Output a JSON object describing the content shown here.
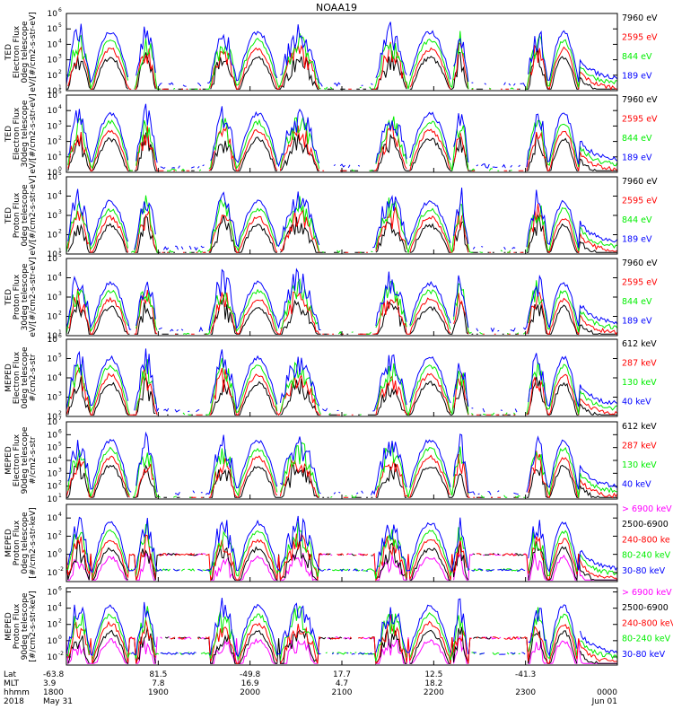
{
  "chart_data": {
    "type": "line",
    "title": "NOAA19",
    "colors": {
      "blue": "#0000ff",
      "green": "#00ee00",
      "red": "#ff0000",
      "black": "#000000",
      "magenta": "#ff00ff"
    },
    "x_ticks": [
      {
        "lat": "-63.8",
        "mlt": "3.9",
        "hhmm": "1800",
        "date": "May 31",
        "frac": 0.0
      },
      {
        "lat": "81.5",
        "mlt": "7.8",
        "hhmm": "1900",
        "date": "",
        "frac": 0.1667
      },
      {
        "lat": "-49.8",
        "mlt": "16.9",
        "hhmm": "2000",
        "date": "",
        "frac": 0.3333
      },
      {
        "lat": "17.7",
        "mlt": "4.7",
        "hhmm": "2100",
        "date": "",
        "frac": 0.5
      },
      {
        "lat": "12.5",
        "mlt": "18.2",
        "hhmm": "2200",
        "date": "",
        "frac": 0.6667
      },
      {
        "lat": "-41.3",
        "mlt": "",
        "hhmm": "2300",
        "date": "",
        "frac": 0.8333
      },
      {
        "lat": "",
        "mlt": "",
        "hhmm": "0000",
        "date": "Jun 01",
        "frac": 1.0
      }
    ],
    "row_labels": {
      "lat": "Lat",
      "mlt": "MLT",
      "hhmm": "hhmm",
      "year": "2018"
    },
    "panels": [
      {
        "ylabel": [
          "TED",
          "Electron Flux",
          "0deg telescope",
          "eV/[#/cm2-s-str-eV]"
        ],
        "yticks": [
          {
            "e": 1,
            "t": "10"
          },
          {
            "e": 2,
            "t": "10"
          },
          {
            "e": 3,
            "t": "10"
          },
          {
            "e": 4,
            "t": "10"
          },
          {
            "e": 5,
            "t": "10"
          },
          {
            "e": 6,
            "t": "10"
          }
        ],
        "ymin": 1,
        "ymax": 6,
        "legend": [
          {
            "text": "7960 eV",
            "color": "#000000"
          },
          {
            "text": "2595 eV",
            "color": "#ff0000"
          },
          {
            "text": "844 eV",
            "color": "#00ee00"
          },
          {
            "text": "189 eV",
            "color": "#0000ff"
          }
        ]
      },
      {
        "ylabel": [
          "TED",
          "Electron Flux",
          "30deg telescope",
          "eV/[#/cm2-s-str-eV]"
        ],
        "yticks": [
          {
            "e": 0,
            "t": "10"
          },
          {
            "e": 1,
            "t": "10"
          },
          {
            "e": 2,
            "t": "10"
          },
          {
            "e": 3,
            "t": "10"
          },
          {
            "e": 4,
            "t": "10"
          },
          {
            "e": 5,
            "t": "10"
          }
        ],
        "ymin": 0,
        "ymax": 5,
        "legend": [
          {
            "text": "7960 eV",
            "color": "#000000"
          },
          {
            "text": "2595 eV",
            "color": "#ff0000"
          },
          {
            "text": "844 eV",
            "color": "#00ee00"
          },
          {
            "text": "189 eV",
            "color": "#0000ff"
          }
        ]
      },
      {
        "ylabel": [
          "TED",
          "Proton Flux",
          "0deg telescope",
          "eV/[#/cm2-s-str-eV]"
        ],
        "yticks": [
          {
            "e": 1,
            "t": "10"
          },
          {
            "e": 2,
            "t": "10"
          },
          {
            "e": 3,
            "t": "10"
          },
          {
            "e": 4,
            "t": "10"
          },
          {
            "e": 5,
            "t": "10"
          }
        ],
        "ymin": 1,
        "ymax": 5,
        "legend": [
          {
            "text": "7960 eV",
            "color": "#000000"
          },
          {
            "text": "2595 eV",
            "color": "#ff0000"
          },
          {
            "text": "844 eV",
            "color": "#00ee00"
          },
          {
            "text": "189 eV",
            "color": "#0000ff"
          }
        ]
      },
      {
        "ylabel": [
          "TED",
          "Proton Flux",
          "30deg telescope",
          "eV/[#/cm2-s-str-eV]"
        ],
        "yticks": [
          {
            "e": 1,
            "t": "10"
          },
          {
            "e": 2,
            "t": "10"
          },
          {
            "e": 3,
            "t": "10"
          },
          {
            "e": 4,
            "t": "10"
          },
          {
            "e": 5,
            "t": "10"
          }
        ],
        "ymin": 1,
        "ymax": 5,
        "legend": [
          {
            "text": "7960 eV",
            "color": "#000000"
          },
          {
            "text": "2595 eV",
            "color": "#ff0000"
          },
          {
            "text": "844 eV",
            "color": "#00ee00"
          },
          {
            "text": "189 eV",
            "color": "#0000ff"
          }
        ]
      },
      {
        "ylabel": [
          "MEPED",
          "Electron Flux",
          "0deg telescope",
          "#/cm2-s-str"
        ],
        "yticks": [
          {
            "e": 2,
            "t": "10"
          },
          {
            "e": 3,
            "t": "10"
          },
          {
            "e": 4,
            "t": "10"
          },
          {
            "e": 5,
            "t": "10"
          },
          {
            "e": 6,
            "t": "10"
          }
        ],
        "ymin": 2,
        "ymax": 6,
        "legend": [
          {
            "text": "612 keV",
            "color": "#000000"
          },
          {
            "text": "287 keV",
            "color": "#ff0000"
          },
          {
            "text": "130 keV",
            "color": "#00ee00"
          },
          {
            "text": "40 keV",
            "color": "#0000ff"
          }
        ]
      },
      {
        "ylabel": [
          "MEPED",
          "Electron Flux",
          "90deg telescope",
          "#/cm2-s-str"
        ],
        "yticks": [
          {
            "e": 1,
            "t": "10"
          },
          {
            "e": 2,
            "t": "10"
          },
          {
            "e": 3,
            "t": "10"
          },
          {
            "e": 4,
            "t": "10"
          },
          {
            "e": 5,
            "t": "10"
          },
          {
            "e": 6,
            "t": "10"
          },
          {
            "e": 7,
            "t": "10"
          }
        ],
        "ymin": 1,
        "ymax": 7,
        "legend": [
          {
            "text": "612 keV",
            "color": "#000000"
          },
          {
            "text": "287 keV",
            "color": "#ff0000"
          },
          {
            "text": "130 keV",
            "color": "#00ee00"
          },
          {
            "text": "40 keV",
            "color": "#0000ff"
          }
        ]
      },
      {
        "ylabel": [
          "MEPED",
          "Proton Flux",
          "0deg telescope",
          "[#/cm2-s-str-keV]"
        ],
        "yticks": [
          {
            "e": -2,
            "t": "10"
          },
          {
            "e": 0,
            "t": "10"
          },
          {
            "e": 2,
            "t": "10"
          },
          {
            "e": 4,
            "t": "10"
          }
        ],
        "ymin": -3,
        "ymax": 5.5,
        "legend": [
          {
            "text": "> 6900 keV",
            "color": "#ff00ff"
          },
          {
            "text": "2500-6900",
            "color": "#000000"
          },
          {
            "text": "240-800 ke",
            "color": "#ff0000"
          },
          {
            "text": "80-240 keV",
            "color": "#00ee00"
          },
          {
            "text": "30-80 keV",
            "color": "#0000ff"
          }
        ]
      },
      {
        "ylabel": [
          "MEPED",
          "Proton Flux",
          "90deg telescope",
          "[#/cm2-s-str-keV]"
        ],
        "yticks": [
          {
            "e": -2,
            "t": "10"
          },
          {
            "e": 0,
            "t": "10"
          },
          {
            "e": 2,
            "t": "10"
          },
          {
            "e": 4,
            "t": "10"
          },
          {
            "e": 6,
            "t": "10"
          }
        ],
        "ymin": -3,
        "ymax": 6.5,
        "legend": [
          {
            "text": "> 6900 keV",
            "color": "#ff00ff"
          },
          {
            "text": "2500-6900",
            "color": "#000000"
          },
          {
            "text": "240-800 keV",
            "color": "#ff0000"
          },
          {
            "text": "80-240 keV",
            "color": "#00ee00"
          },
          {
            "text": "30-80 keV",
            "color": "#0000ff"
          }
        ]
      }
    ]
  }
}
